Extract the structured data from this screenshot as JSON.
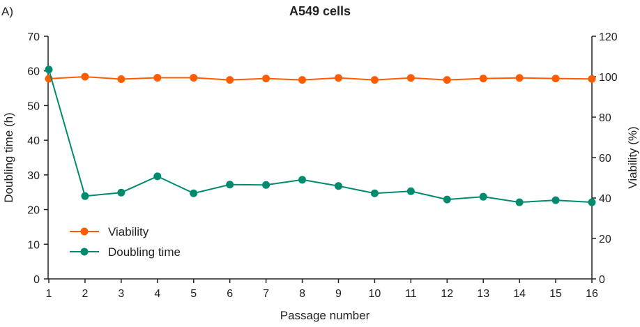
{
  "panel_label": "A)",
  "chart_data": {
    "type": "line",
    "title": "A549 cells",
    "xlabel": "Passage number",
    "ylabel": "Doubling time (h)",
    "y2label": "Viability (%)",
    "x": [
      1,
      2,
      3,
      4,
      5,
      6,
      7,
      8,
      9,
      10,
      11,
      12,
      13,
      14,
      15,
      16
    ],
    "ylim": [
      0,
      70
    ],
    "y2lim": [
      0,
      120
    ],
    "yticks": [
      0,
      10,
      20,
      30,
      40,
      50,
      60,
      70
    ],
    "y2ticks": [
      0,
      20,
      40,
      60,
      80,
      100,
      120
    ],
    "grid": false,
    "legend_position": "bottom-left",
    "series": [
      {
        "name": "Viability",
        "axis": "right",
        "color": "#ff5c00",
        "values": [
          99.0,
          100.0,
          98.8,
          99.5,
          99.5,
          98.4,
          99.1,
          98.4,
          99.4,
          98.4,
          99.4,
          98.4,
          99.1,
          99.4,
          99.1,
          98.9
        ]
      },
      {
        "name": "Doubling time",
        "axis": "left",
        "color": "#008a6e",
        "values": [
          60.4,
          23.9,
          24.9,
          29.6,
          24.7,
          27.2,
          27.1,
          28.6,
          26.8,
          24.7,
          25.3,
          22.9,
          23.7,
          22.1,
          22.7,
          22.1
        ]
      }
    ]
  }
}
